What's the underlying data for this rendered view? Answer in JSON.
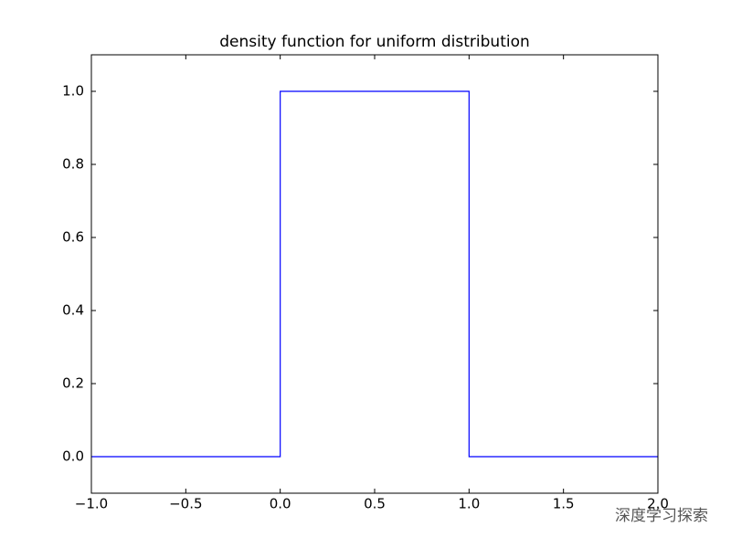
{
  "chart_data": {
    "type": "line",
    "title": "density function for uniform distribution",
    "x": [
      -1,
      0,
      0,
      1,
      1,
      2
    ],
    "values": [
      0,
      0,
      1,
      1,
      0,
      0
    ],
    "color": "#0000ff",
    "xlim": [
      -1,
      2
    ],
    "ylim": [
      -0.1,
      1.1
    ],
    "xticks": [
      {
        "value": -1,
        "label": "−1.0"
      },
      {
        "value": -0.5,
        "label": "−0.5"
      },
      {
        "value": 0,
        "label": "0.0"
      },
      0.5,
      {
        "value": 1,
        "label": "1.0"
      },
      1.5,
      {
        "value": 2,
        "label": "2.0"
      }
    ],
    "yticks": [
      {
        "value": 0,
        "label": "0.0"
      },
      0.2,
      0.4,
      0.6,
      0.8,
      {
        "value": 1,
        "label": "1.0"
      }
    ],
    "grid": false,
    "watermark": "深度学习探索"
  }
}
